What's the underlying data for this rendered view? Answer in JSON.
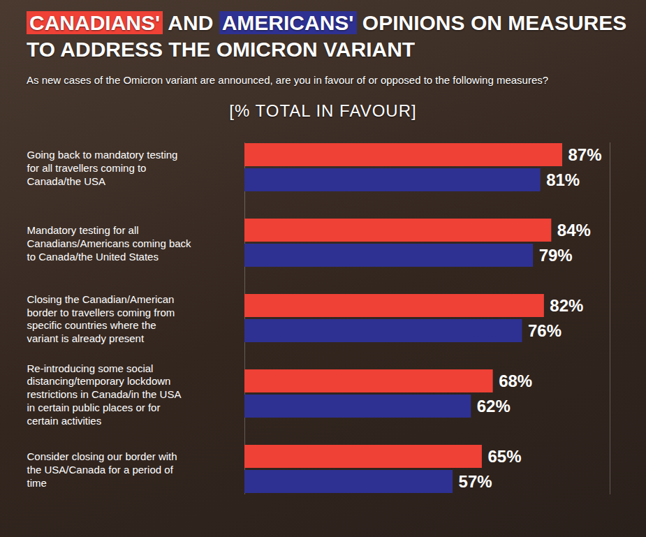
{
  "chart_data": {
    "type": "bar",
    "orientation": "horizontal",
    "title": "CANADIANS' AND AMERICANS' OPINIONS ON MEASURES TO ADDRESS THE OMICRON VARIANT",
    "subtitle": "As new cases of the Omicron variant are announced, are you in favour of or opposed to the following measures?",
    "xlabel": "[% TOTAL IN FAVOUR]",
    "categories": [
      "Going back to mandatory testing for all travellers coming to Canada/the USA",
      "Mandatory testing for all Canadians/Americans coming back to Canada/the United States",
      "Closing the Canadian/American border to travellers coming from specific countries where the variant is already present",
      "Re-introducing some social distancing/temporary lockdown restrictions in Canada/in the USA in certain public places or for certain activities",
      "Consider closing our border with the USA/Canada for a period of time"
    ],
    "series": [
      {
        "name": "CANADIANS'",
        "color": "#ef4136",
        "values": [
          87,
          84,
          82,
          68,
          65
        ],
        "value_labels": [
          "87%",
          "84%",
          "82%",
          "68%",
          "65%"
        ]
      },
      {
        "name": "AMERICANS'",
        "color": "#2e3192",
        "values": [
          81,
          79,
          76,
          62,
          57
        ],
        "value_labels": [
          "81%",
          "79%",
          "76%",
          "62%",
          "57%"
        ]
      }
    ],
    "xlim": [
      0,
      100
    ],
    "data_labels": true,
    "tick_labels": "y",
    "grid": false
  }
}
